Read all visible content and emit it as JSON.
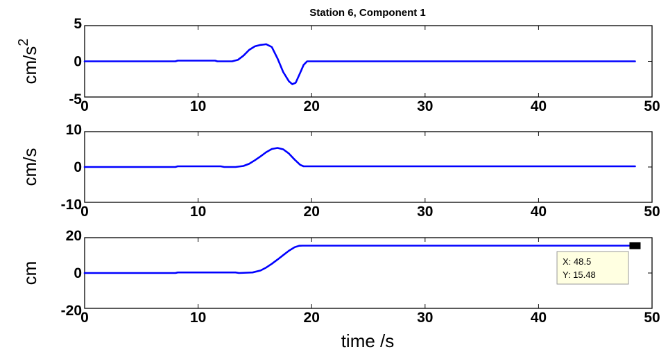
{
  "chart_data": [
    {
      "type": "line",
      "title": "Station 6, Component 1",
      "ylabel": "cm/s",
      "ylabel_superscript": "2",
      "xlabel": "",
      "xlim": [
        0,
        50
      ],
      "ylim": [
        -5,
        5
      ],
      "xticks": [
        0,
        10,
        20,
        30,
        40,
        50
      ],
      "yticks": [
        -5,
        0,
        5
      ],
      "color": "#0000ff",
      "x": [
        0,
        8,
        8.2,
        11.5,
        11.7,
        13,
        13.5,
        14,
        14.5,
        15,
        15.5,
        16,
        16.5,
        17,
        17.5,
        18,
        18.3,
        18.6,
        19,
        19.3,
        19.6,
        20,
        48.5
      ],
      "y": [
        0,
        0,
        0.1,
        0.1,
        0,
        0,
        0.2,
        0.8,
        1.6,
        2.1,
        2.3,
        2.4,
        2.0,
        0.4,
        -1.5,
        -2.8,
        -3.2,
        -3.0,
        -1.6,
        -0.5,
        0,
        0,
        0
      ]
    },
    {
      "type": "line",
      "title": "",
      "ylabel": "cm/s",
      "xlabel": "",
      "xlim": [
        0,
        50
      ],
      "ylim": [
        -10,
        10
      ],
      "xticks": [
        0,
        10,
        20,
        30,
        40,
        50
      ],
      "yticks": [
        -10,
        0,
        10
      ],
      "color": "#0000ff",
      "x": [
        0,
        8,
        8.2,
        12,
        12.3,
        13.3,
        14,
        14.5,
        15,
        15.5,
        16,
        16.5,
        17,
        17.5,
        18,
        18.5,
        19,
        19.3,
        48.5
      ],
      "y": [
        0,
        0,
        0.2,
        0.2,
        0,
        0,
        0.3,
        0.9,
        1.9,
        3.0,
        4.2,
        5.1,
        5.4,
        5.0,
        3.8,
        2.1,
        0.6,
        0.2,
        0.2
      ]
    },
    {
      "type": "line",
      "title": "",
      "ylabel": "cm",
      "xlabel": "time /s",
      "xlim": [
        0,
        50
      ],
      "ylim": [
        -20,
        20
      ],
      "xticks": [
        0,
        10,
        20,
        30,
        40,
        50
      ],
      "yticks": [
        -20,
        0,
        20
      ],
      "color": "#0000ff",
      "x": [
        0,
        8,
        8.2,
        13.3,
        13.6,
        14.8,
        15.5,
        16,
        16.5,
        17,
        17.5,
        18,
        18.5,
        18.9,
        19.2,
        48.5
      ],
      "y": [
        0,
        0,
        0.3,
        0.3,
        0,
        0.3,
        1.4,
        3.1,
        5.2,
        7.6,
        10.1,
        12.6,
        14.6,
        15.4,
        15.48,
        15.48
      ],
      "datatip": {
        "x_label": "X: 48.5",
        "y_label": "Y: 15.48",
        "x": 48.5,
        "y": 15.48
      }
    }
  ]
}
